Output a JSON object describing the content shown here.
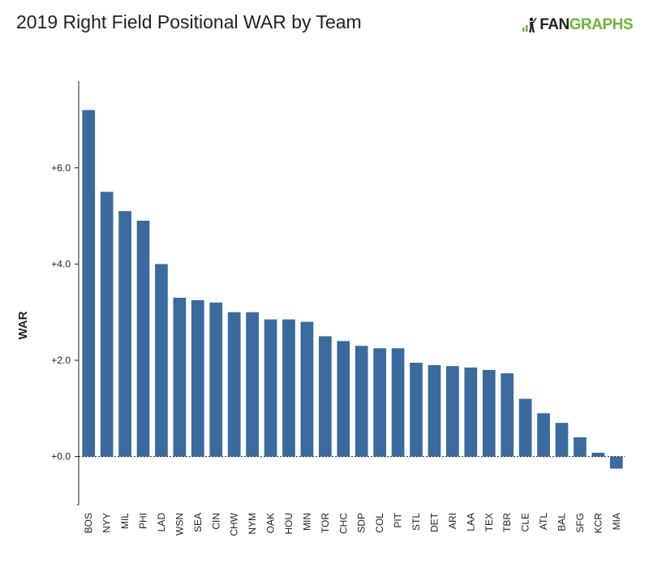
{
  "header": {
    "title": "2019 Right Field Positional WAR by Team",
    "logo_fan": "FAN",
    "logo_graphs": "GRAPHS"
  },
  "colors": {
    "bar": "#3a6a9e",
    "axis": "#222222",
    "logo_green": "#6fb33b"
  },
  "chart_data": {
    "type": "bar",
    "title": "2019 Right Field Positional WAR by Team",
    "xlabel": "",
    "ylabel": "WAR",
    "ylim": [
      -1.0,
      7.8
    ],
    "yticks": [
      0,
      2,
      4,
      6
    ],
    "ytick_labels": [
      "+0.0",
      "+2.0",
      "+4.0",
      "+6.0"
    ],
    "grid": false,
    "zero_line": "dotted",
    "categories": [
      "BOS",
      "NYY",
      "MIL",
      "PHI",
      "LAD",
      "WSN",
      "SEA",
      "CIN",
      "CHW",
      "NYM",
      "OAK",
      "HOU",
      "MIN",
      "TOR",
      "CHC",
      "SDP",
      "COL",
      "PIT",
      "STL",
      "DET",
      "ARI",
      "LAA",
      "TEX",
      "TBR",
      "CLE",
      "ATL",
      "BAL",
      "SFG",
      "KCR",
      "MIA"
    ],
    "values": [
      7.2,
      5.5,
      5.1,
      4.9,
      4.0,
      3.3,
      3.25,
      3.2,
      3.0,
      3.0,
      2.85,
      2.85,
      2.8,
      2.5,
      2.4,
      2.3,
      2.25,
      2.25,
      1.95,
      1.9,
      1.88,
      1.85,
      1.8,
      1.73,
      1.2,
      0.9,
      0.7,
      0.4,
      0.08,
      -0.25
    ]
  }
}
